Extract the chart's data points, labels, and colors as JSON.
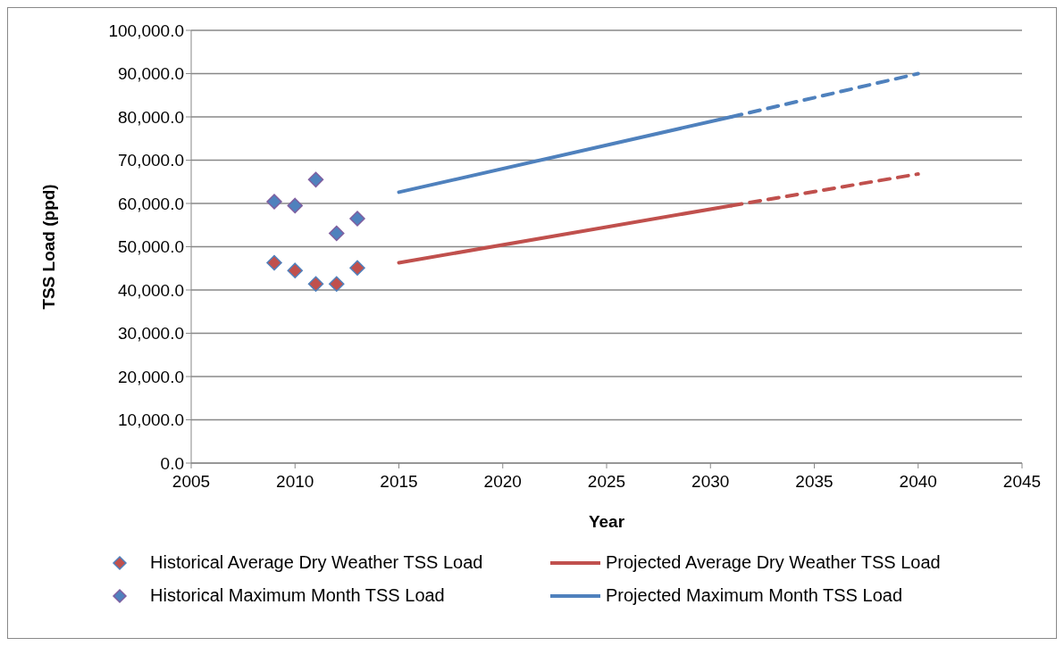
{
  "chart_data": {
    "type": "scatter",
    "xlabel": "Year",
    "ylabel": "TSS Load (ppd)",
    "xlim": [
      2005,
      2045
    ],
    "xticks": [
      2005,
      2010,
      2015,
      2020,
      2025,
      2030,
      2035,
      2040,
      2045
    ],
    "ylim": [
      0,
      100000
    ],
    "yticks": [
      {
        "value": 0,
        "label": "0.0"
      },
      {
        "value": 10000,
        "label": "10,000.0"
      },
      {
        "value": 20000,
        "label": "20,000.0"
      },
      {
        "value": 30000,
        "label": "30,000.0"
      },
      {
        "value": 40000,
        "label": "40,000.0"
      },
      {
        "value": 50000,
        "label": "50,000.0"
      },
      {
        "value": 60000,
        "label": "60,000.0"
      },
      {
        "value": 70000,
        "label": "70,000.0"
      },
      {
        "value": 80000,
        "label": "80,000.0"
      },
      {
        "value": 90000,
        "label": "90,000.0"
      },
      {
        "value": 100000,
        "label": "100,000.0"
      }
    ],
    "grid": "y",
    "legend": "bottom",
    "series": [
      {
        "name": "Historical Average Dry Weather TSS Load",
        "marker": "diamond",
        "color": "#c0504d",
        "x": [
          2009,
          2010,
          2011,
          2012,
          2013
        ],
        "values": [
          46300,
          44500,
          41400,
          41400,
          45100
        ]
      },
      {
        "name": "Projected Average Dry Weather TSS Load",
        "type": "line",
        "marker": "none",
        "line_style": "solid",
        "color": "#c0504d",
        "x": [
          2015,
          2031
        ],
        "values": [
          46300,
          59500
        ]
      },
      {
        "name": "Historical Maximum Month TSS Load",
        "marker": "diamond",
        "color": "#4f81bd",
        "x": [
          2009,
          2010,
          2011,
          2012,
          2013
        ],
        "values": [
          60400,
          59500,
          65500,
          53100,
          56500
        ]
      },
      {
        "name": "Projected Maximum Month TSS Load",
        "type": "line",
        "marker": "none",
        "line_style": "solid",
        "color": "#4f81bd",
        "x": [
          2015,
          2031
        ],
        "values": [
          62600,
          80000
        ]
      },
      {
        "type": "line",
        "marker": "none",
        "line_style": "dashed",
        "color": "#c0504d",
        "x": [
          2031,
          2040
        ],
        "values": [
          59500,
          66800
        ]
      },
      {
        "type": "line",
        "marker": "none",
        "line_style": "dashed",
        "color": "#4f81bd",
        "x": [
          2031,
          2040
        ],
        "values": [
          80000,
          90000
        ]
      }
    ]
  }
}
